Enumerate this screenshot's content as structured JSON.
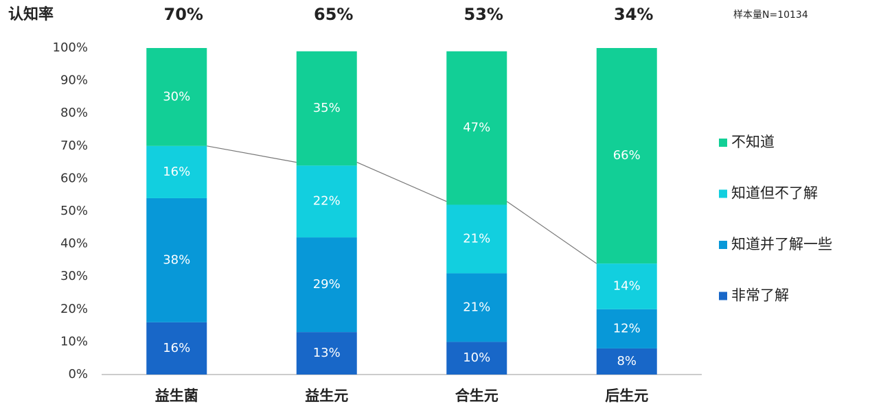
{
  "chart_data": {
    "type": "stacked_bar",
    "categories": [
      "益生菌",
      "益生元",
      "合生元",
      "后生元"
    ],
    "series": [
      {
        "name": "非常了解",
        "color": "#1867c8",
        "values": [
          16,
          13,
          10,
          8
        ],
        "value_labels": [
          "16%",
          "13%",
          "10%",
          "8%"
        ]
      },
      {
        "name": "知道并了解一些",
        "color": "#0898d8",
        "values": [
          38,
          29,
          21,
          12
        ],
        "value_labels": [
          "38%",
          "29%",
          "21%",
          "12%"
        ]
      },
      {
        "name": "知道但不了解",
        "color": "#12cfdf",
        "values": [
          16,
          22,
          21,
          14
        ],
        "value_labels": [
          "16%",
          "22%",
          "21%",
          "14%"
        ]
      },
      {
        "name": "不知道",
        "color": "#12cf96",
        "values": [
          30,
          35,
          47,
          66
        ],
        "value_labels": [
          "30%",
          "35%",
          "47%",
          "66%"
        ]
      }
    ],
    "awareness": {
      "label": "认知率",
      "values": [
        70,
        65,
        53,
        34
      ],
      "value_labels": [
        "70%",
        "65%",
        "53%",
        "34%"
      ]
    },
    "note": "样本量N=10134",
    "ylim": [
      0,
      100
    ],
    "yticks": [
      {
        "value": 0,
        "label": "0%"
      },
      {
        "value": 10,
        "label": "10%"
      },
      {
        "value": 20,
        "label": "20%"
      },
      {
        "value": 30,
        "label": "30%"
      },
      {
        "value": 40,
        "label": "40%"
      },
      {
        "value": 50,
        "label": "50%"
      },
      {
        "value": 60,
        "label": "60%"
      },
      {
        "value": 70,
        "label": "70%"
      },
      {
        "value": 80,
        "label": "80%"
      },
      {
        "value": 90,
        "label": "90%"
      },
      {
        "value": 100,
        "label": "100%"
      }
    ],
    "legend": "right"
  }
}
